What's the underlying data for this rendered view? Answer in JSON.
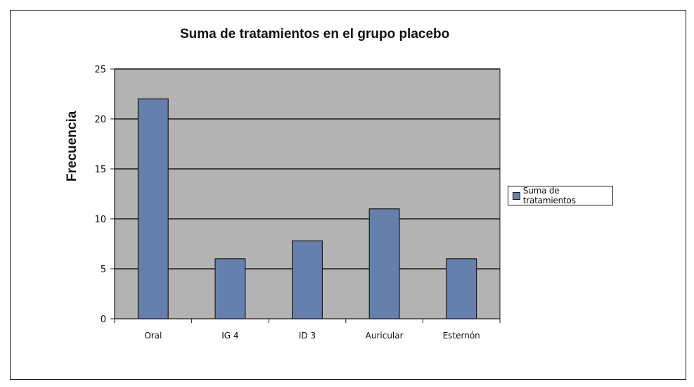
{
  "chart_data": {
    "type": "bar",
    "title": "Suma de tratamientos en el grupo placebo",
    "ylabel": "Frecuencia",
    "xlabel": "",
    "categories": [
      "Oral",
      "IG 4",
      "ID 3",
      "Auricular",
      "Esternón"
    ],
    "series": [
      {
        "name": "Suma de tratamientos",
        "values": [
          22,
          6,
          7.8,
          11,
          6
        ]
      }
    ],
    "ylim": [
      0,
      25
    ],
    "yticks": [
      0,
      5,
      10,
      15,
      20,
      25
    ],
    "grid": true,
    "legend": "right",
    "colors": {
      "bar": "#6680ad",
      "plot_bg": "#b3b3b3",
      "grid": "#1a1a1a"
    }
  }
}
